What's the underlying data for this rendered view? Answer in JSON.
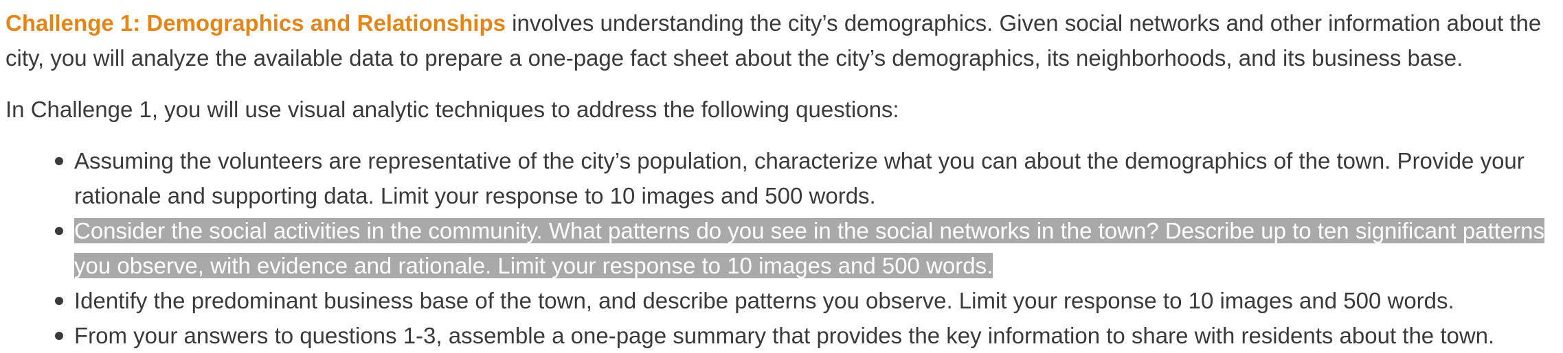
{
  "intro": {
    "challenge_title": "Challenge 1: Demographics and Relationships",
    "body": " involves understanding the city’s demographics. Given social networks and other information about the city, you will analyze the available data to prepare a one-page fact sheet about the city’s demographics, its neighborhoods, and its business base."
  },
  "lead": "In Challenge 1, you will use visual analytic techniques to address the following questions:",
  "questions": [
    {
      "text": "Assuming the volunteers are representative of the city’s population, characterize what you can about the demographics of the town. Provide your rationale and supporting data. Limit your response to 10 images and 500 words.",
      "selected": false
    },
    {
      "text": "Consider the social activities in the community. What patterns do you see in the social networks in the town? Describe up to ten significant patterns you observe, with evidence and rationale. Limit your response to 10 images and 500 words.",
      "selected": true
    },
    {
      "text": "Identify the predominant business base of the town, and describe patterns you observe. Limit your response to 10 images and 500 words.",
      "selected": false
    },
    {
      "text": "From your answers to questions 1-3, assemble a one-page summary that provides the key information to share with residents about the town.",
      "selected": false
    }
  ],
  "colors": {
    "accent": "#e0861a",
    "text": "#3a3a3a",
    "selection": "#a9a9a9"
  }
}
